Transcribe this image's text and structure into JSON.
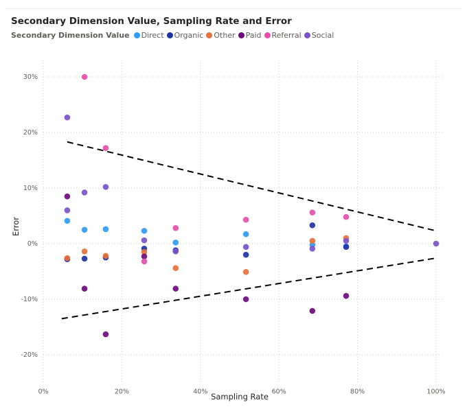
{
  "chart_data": {
    "type": "scatter",
    "title": "Secondary Dimension Value, Sampling Rate and Error",
    "legend_title": "Secondary Dimension Value",
    "legend_position": "top-left",
    "xlabel": "Sampling Rate",
    "ylabel": "Error",
    "xlim": [
      0,
      102
    ],
    "ylim": [
      -25,
      33
    ],
    "x_ticks": [
      "0%",
      "20%",
      "40%",
      "60%",
      "80%",
      "100%"
    ],
    "x_tick_values": [
      0,
      20,
      40,
      60,
      80,
      100
    ],
    "y_ticks": [
      "-20%",
      "-10%",
      "0%",
      "10%",
      "20%",
      "30%"
    ],
    "y_tick_values": [
      -20,
      -10,
      0,
      10,
      20,
      30
    ],
    "grid": "dotted",
    "series": [
      {
        "name": "Direct",
        "color": "#2E9BF5",
        "points": [
          [
            6.1,
            4.1
          ],
          [
            10.5,
            2.5
          ],
          [
            15.9,
            2.6
          ],
          [
            25.7,
            2.3
          ],
          [
            33.7,
            0.2
          ],
          [
            51.6,
            1.7
          ],
          [
            68.5,
            -0.2
          ],
          [
            77.1,
            -0.5
          ]
        ]
      },
      {
        "name": "Organic",
        "color": "#1F33A6",
        "points": [
          [
            6.1,
            -2.8
          ],
          [
            10.5,
            -2.7
          ],
          [
            15.9,
            -2.5
          ],
          [
            25.7,
            -0.9
          ],
          [
            33.7,
            -1.2
          ],
          [
            51.6,
            -2.0
          ],
          [
            68.5,
            3.3
          ],
          [
            77.1,
            -0.6
          ]
        ]
      },
      {
        "name": "Other",
        "color": "#E8713B",
        "points": [
          [
            6.1,
            -2.6
          ],
          [
            10.5,
            -1.4
          ],
          [
            15.9,
            -2.2
          ],
          [
            25.7,
            -1.5
          ],
          [
            33.7,
            -4.4
          ],
          [
            51.6,
            -5.1
          ],
          [
            68.5,
            0.5
          ],
          [
            77.1,
            1.0
          ]
        ]
      },
      {
        "name": "Paid",
        "color": "#6E0B7E",
        "points": [
          [
            6.1,
            8.5
          ],
          [
            10.5,
            -8.1
          ],
          [
            15.9,
            -16.3
          ],
          [
            25.7,
            -2.3
          ],
          [
            33.7,
            -8.1
          ],
          [
            51.6,
            -10.0
          ],
          [
            68.5,
            -12.1
          ],
          [
            77.1,
            -9.4
          ]
        ]
      },
      {
        "name": "Referral",
        "color": "#E54FAA",
        "points": [
          [
            10.5,
            30.0
          ],
          [
            15.9,
            17.2
          ],
          [
            25.7,
            -3.2
          ],
          [
            33.7,
            2.8
          ],
          [
            51.6,
            4.3
          ],
          [
            68.5,
            5.6
          ],
          [
            77.1,
            4.8
          ]
        ]
      },
      {
        "name": "Social",
        "color": "#7B52C9",
        "points": [
          [
            6.1,
            22.7
          ],
          [
            6.1,
            6.0
          ],
          [
            10.5,
            9.2
          ],
          [
            15.9,
            10.2
          ],
          [
            25.7,
            0.6
          ],
          [
            33.7,
            -1.4
          ],
          [
            51.6,
            -0.6
          ],
          [
            68.5,
            -0.9
          ],
          [
            77.1,
            0.5
          ],
          [
            100,
            0
          ]
        ]
      }
    ],
    "reference_lines": [
      {
        "style": "dashed",
        "color": "#000000",
        "points": [
          [
            6.1,
            18.3
          ],
          [
            100,
            2.3
          ]
        ]
      },
      {
        "style": "dashed",
        "color": "#000000",
        "points": [
          [
            4.7,
            -13.5
          ],
          [
            100,
            -2.6
          ]
        ]
      }
    ]
  }
}
